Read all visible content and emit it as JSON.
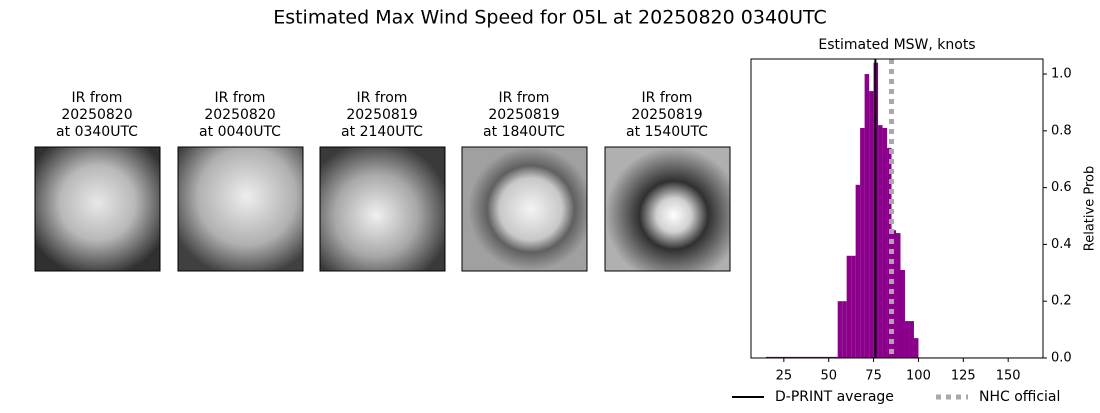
{
  "title": "Estimated Max Wind Speed for 05L at 20250820 0340UTC",
  "panels": [
    {
      "lines": [
        "IR from",
        "20250820",
        "at 0340UTC"
      ]
    },
    {
      "lines": [
        "IR from",
        "20250820",
        "at 0040UTC"
      ]
    },
    {
      "lines": [
        "IR from",
        "20250819",
        "at 2140UTC"
      ]
    },
    {
      "lines": [
        "IR from",
        "20250819",
        "at 1840UTC"
      ]
    },
    {
      "lines": [
        "IR from",
        "20250819",
        "at 1540UTC"
      ]
    }
  ],
  "chart_data": {
    "type": "histogram",
    "title": "Estimated MSW, knots",
    "y_label": "Relative Prob",
    "color": "#8b008b",
    "bins": [
      15,
      55,
      57.5,
      60,
      62.5,
      65,
      67.5,
      70,
      72.5,
      75,
      77.5,
      80,
      82.5,
      85,
      87.5,
      90,
      92.5,
      95,
      97.5,
      100,
      170
    ],
    "counts": [
      0.004,
      0.2,
      0.2,
      0.36,
      0.36,
      0.61,
      0.81,
      1.0,
      0.94,
      1.04,
      0.82,
      0.81,
      0.74,
      0.45,
      0.44,
      0.31,
      0.13,
      0.13,
      0.07,
      0.002
    ],
    "xlim": [
      6.7,
      169.4
    ],
    "xticks": [
      25,
      50,
      75,
      100,
      125,
      150
    ],
    "ylim": [
      0,
      1.053
    ],
    "yticks": [
      {
        "value": 0,
        "label": "0.0"
      },
      {
        "value": 0.2,
        "label": "0.2"
      },
      {
        "value": 0.4,
        "label": "0.4"
      },
      {
        "value": 0.6,
        "label": "0.6"
      },
      {
        "value": 0.8,
        "label": "0.8"
      },
      {
        "value": 1,
        "label": "1.0"
      }
    ],
    "lines": [
      {
        "name": "D-PRINT average",
        "value": 76,
        "color": "#000000",
        "style": "solid"
      },
      {
        "name": "NHC official",
        "value": 85,
        "color": "#a9a9a9",
        "style": "dotted"
      }
    ]
  }
}
